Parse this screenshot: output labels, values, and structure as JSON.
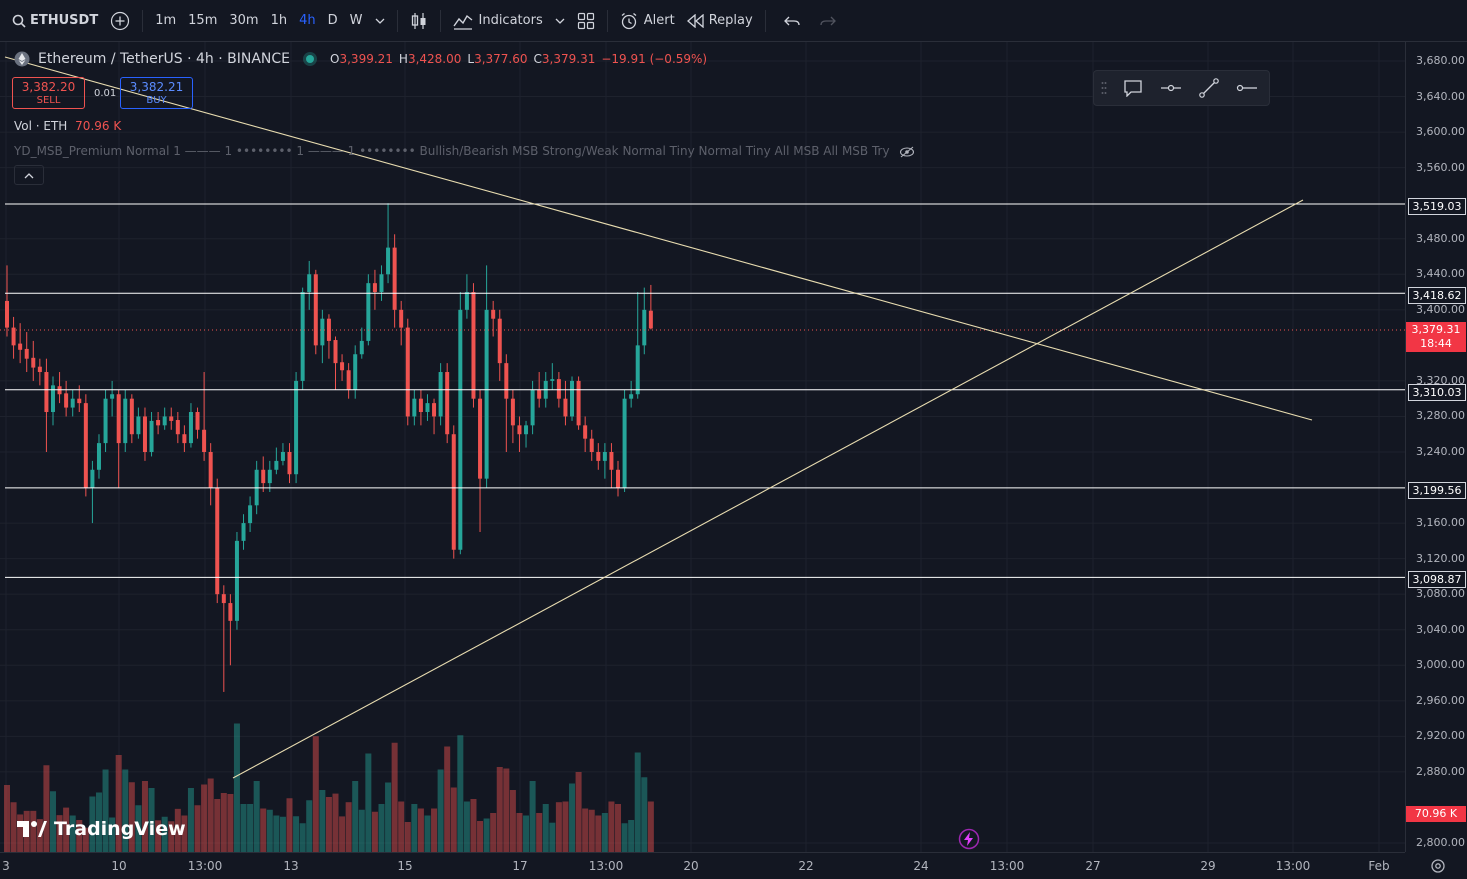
{
  "toolbar": {
    "symbol": "ETHUSDT",
    "intervals": [
      "1m",
      "15m",
      "30m",
      "1h",
      "4h",
      "D",
      "W"
    ],
    "active_interval": "4h",
    "indicators_label": "Indicators",
    "alert_label": "Alert",
    "replay_label": "Replay"
  },
  "legend": {
    "title": "Ethereum / TetherUS · 4h · BINANCE",
    "o_label": "O",
    "o": "3,399.21",
    "h_label": "H",
    "h": "3,428.00",
    "l_label": "L",
    "l": "3,377.60",
    "c_label": "C",
    "c": "3,379.31",
    "change": "−19.91 (−0.59%)"
  },
  "trade": {
    "sell_price": "3,382.20",
    "sell_label": "SELL",
    "spread": "0.01",
    "buy_price": "3,382.21",
    "buy_label": "BUY"
  },
  "volume_legend": {
    "label": "Vol · ETH",
    "value": "70.96 K"
  },
  "indicator_legend": "YD_MSB_Premium   Normal 1 ——— 1 •••••••• 1 ——— 1 •••••••• Bullish/Bearish MSB Strong/Weak Normal Tiny Normal Tiny All MSB All MSB Try",
  "price_axis": [
    "3,680.00",
    "3,640.00",
    "3,600.00",
    "3,560.00",
    "3,480.00",
    "3,440.00",
    "3,400.00",
    "3,320.00",
    "3,280.00",
    "3,240.00",
    "3,160.00",
    "3,120.00",
    "3,080.00",
    "3,040.00",
    "3,000.00",
    "2,960.00",
    "2,920.00",
    "2,880.00",
    "2,800.00"
  ],
  "horizontal_levels": [
    "3,519.03",
    "3,418.62",
    "3,310.03",
    "3,199.56",
    "3,098.87"
  ],
  "current_price": {
    "price": "3,379.31",
    "countdown": "18:44"
  },
  "volume_tag": "70.96 K",
  "time_axis": [
    "3",
    "10",
    "13:00",
    "13",
    "15",
    "17",
    "13:00",
    "20",
    "22",
    "24",
    "13:00",
    "27",
    "29",
    "13:00",
    "Feb"
  ],
  "branding": "TradingView",
  "colors": {
    "up": "#26a69a",
    "down": "#ef5350",
    "background": "#131722",
    "accent": "#2962ff"
  }
}
